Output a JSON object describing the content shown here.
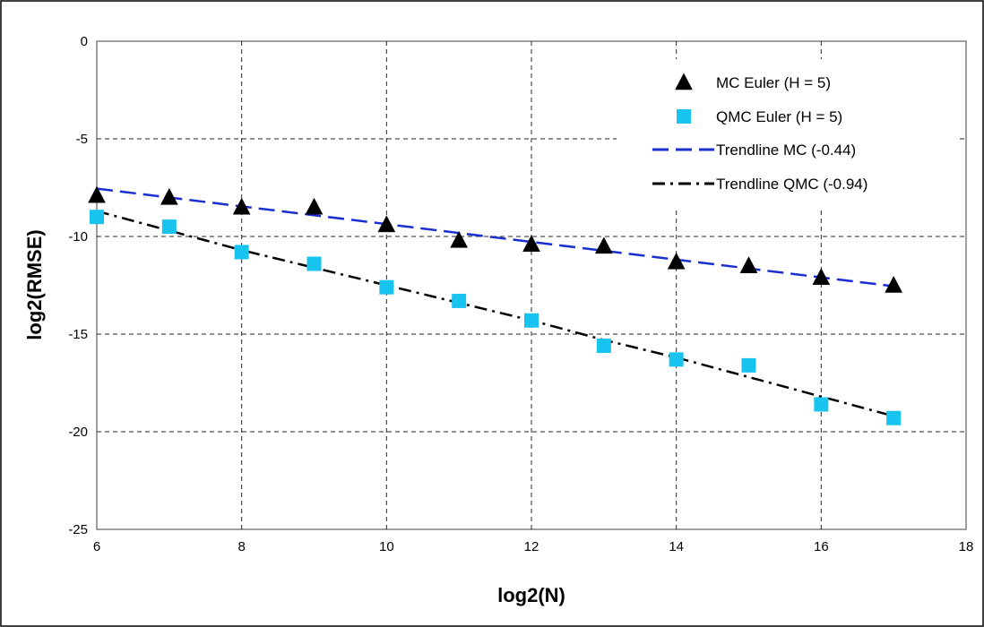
{
  "chart_data": {
    "type": "scatter",
    "title": "",
    "xlabel": "log2(N)",
    "ylabel": "log2(RMSE)",
    "xlim": [
      6,
      18
    ],
    "ylim": [
      -25,
      0
    ],
    "x_ticks": [
      6,
      8,
      10,
      12,
      14,
      16,
      18
    ],
    "y_ticks": [
      0,
      -5,
      -10,
      -15,
      -20,
      -25
    ],
    "grid": true,
    "legend_position": "top-right",
    "series": [
      {
        "name": "MC Euler (H = 5)",
        "kind": "marker",
        "marker": "triangle",
        "color": "#000000",
        "x": [
          6,
          7,
          8,
          9,
          10,
          11,
          12,
          13,
          14,
          15,
          16,
          17
        ],
        "y": [
          -7.9,
          -8.0,
          -8.5,
          -8.5,
          -9.4,
          -10.2,
          -10.4,
          -10.5,
          -11.3,
          -11.5,
          -12.1,
          -12.5
        ]
      },
      {
        "name": "QMC Euler (H = 5)",
        "kind": "marker",
        "marker": "square",
        "color": "#19c3f0",
        "x": [
          6,
          7,
          8,
          9,
          10,
          11,
          12,
          13,
          14,
          15,
          16,
          17
        ],
        "y": [
          -9.0,
          -9.5,
          -10.8,
          -11.4,
          -12.6,
          -13.3,
          -14.3,
          -15.6,
          -16.3,
          -16.6,
          -18.6,
          -19.3
        ]
      },
      {
        "name": "Trendline MC (-0.44)",
        "kind": "line",
        "dash": "dashed",
        "color": "#1a2fd0",
        "x": [
          6,
          17
        ],
        "y": [
          -7.55,
          -12.55
        ]
      },
      {
        "name": "Trendline QMC (-0.94)",
        "kind": "line",
        "dash": "dashdot",
        "color": "#000000",
        "x": [
          6,
          7,
          8,
          9,
          10,
          11,
          12,
          13,
          14,
          15,
          16,
          17
        ],
        "y": [
          -8.7,
          -9.7,
          -10.7,
          -11.6,
          -12.5,
          -13.4,
          -14.3,
          -15.3,
          -16.2,
          -17.2,
          -18.2,
          -19.2
        ]
      }
    ]
  }
}
